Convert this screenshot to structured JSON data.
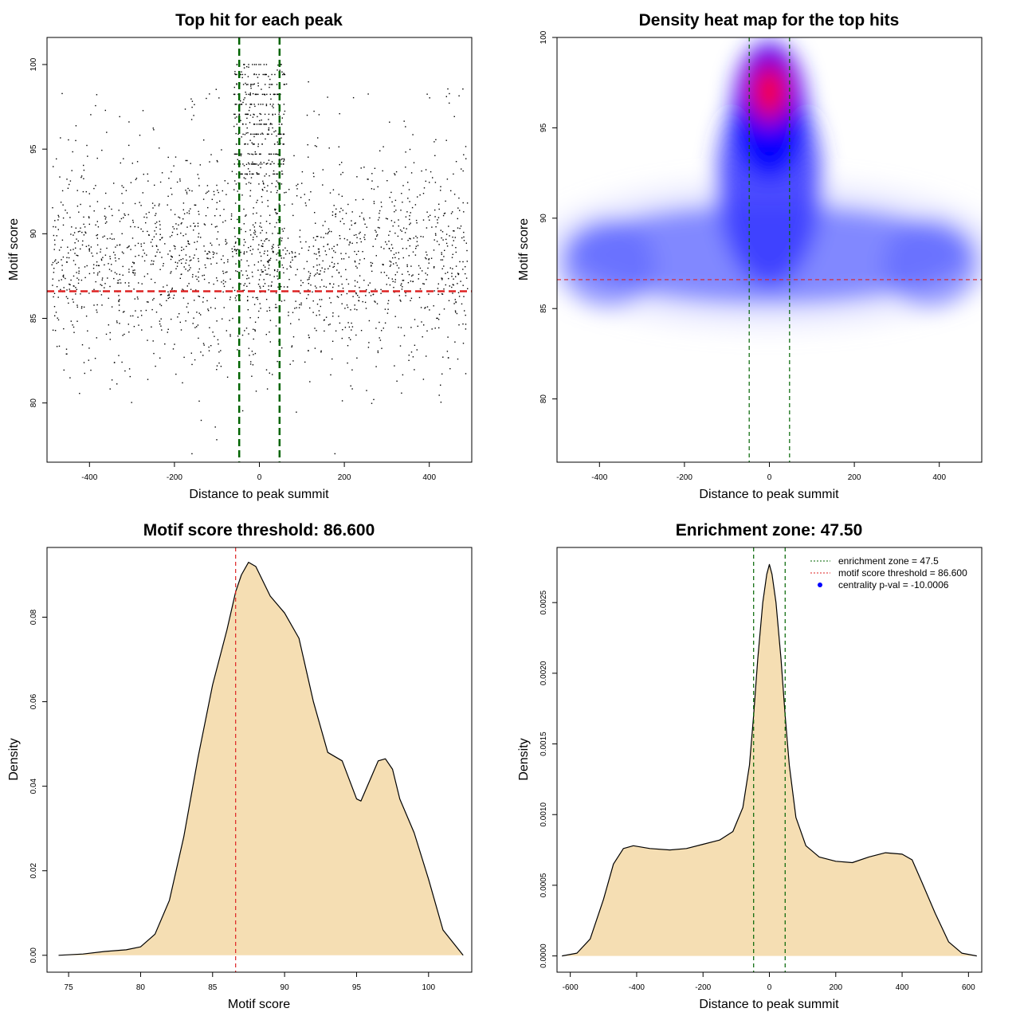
{
  "chart_data": [
    {
      "type": "scatter",
      "title": "Top hit for each peak",
      "xlabel": "Distance to peak summit",
      "ylabel": "Motif score",
      "xlim": [
        -500,
        500
      ],
      "ylim": [
        76.5,
        101.6
      ],
      "xticks": [
        "-400",
        "-200",
        "0",
        "200",
        "400"
      ],
      "yticks": [
        "80",
        "85",
        "90",
        "95",
        "100"
      ],
      "point_count_estimate": 2300,
      "point_distribution": {
        "background": {
          "x_range": [
            -490,
            490
          ],
          "y_mean": 88,
          "y_sd": 3
        },
        "central_cluster": {
          "x_range": [
            -60,
            60
          ],
          "y_range": [
            86,
            100
          ],
          "note": "dense vertical cluster near 0 with banded scores near 94-100"
        }
      },
      "vlines": [
        {
          "x": -47.5,
          "color": "#006400",
          "style": "dashed"
        },
        {
          "x": 47.5,
          "color": "#006400",
          "style": "dashed"
        }
      ],
      "hlines": [
        {
          "y": 86.6,
          "color": "#dd2222",
          "style": "dashed"
        }
      ],
      "grid": false
    },
    {
      "type": "heatmap",
      "title": "Density heat map for the top hits",
      "xlabel": "Distance to peak summit",
      "ylabel": "Motif score",
      "xlim": [
        -500,
        500
      ],
      "ylim": [
        76.5,
        100
      ],
      "xticks": [
        "-400",
        "-200",
        "0",
        "200",
        "400"
      ],
      "yticks": [
        "80",
        "85",
        "90",
        "95",
        "100"
      ],
      "colors": [
        "#ffffff",
        "#0000ff",
        "#ff0000"
      ],
      "hotspot": {
        "x": 0,
        "y": 97
      },
      "vlines": [
        {
          "x": -47.5,
          "color": "#006400",
          "style": "dashed"
        },
        {
          "x": 47.5,
          "color": "#006400",
          "style": "dashed"
        }
      ],
      "hlines": [
        {
          "y": 86.6,
          "color": "#dd2222",
          "style": "dashed"
        }
      ],
      "grid": false
    },
    {
      "type": "area",
      "title": "Motif score threshold: 86.600",
      "xlabel": "Motif score",
      "ylabel": "Density",
      "xlim": [
        73.5,
        103
      ],
      "ylim": [
        -0.004,
        0.0965
      ],
      "xticks": [
        "75",
        "80",
        "85",
        "90",
        "95",
        "100"
      ],
      "yticks": [
        "0.00",
        "0.02",
        "0.04",
        "0.06",
        "0.08"
      ],
      "fill_color": "#f5deb3",
      "x": [
        74.3,
        76,
        77.5,
        79,
        80,
        81,
        82,
        83,
        84,
        85,
        86,
        86.6,
        87,
        87.5,
        88,
        89,
        90,
        91,
        92,
        93,
        94,
        95,
        95.3,
        96,
        96.5,
        97,
        97.5,
        98,
        99,
        100,
        101,
        102.4
      ],
      "values": [
        0.0,
        0.0003,
        0.0009,
        0.0013,
        0.002,
        0.005,
        0.013,
        0.028,
        0.047,
        0.064,
        0.077,
        0.086,
        0.09,
        0.093,
        0.092,
        0.085,
        0.081,
        0.075,
        0.06,
        0.048,
        0.046,
        0.037,
        0.0365,
        0.042,
        0.046,
        0.0465,
        0.044,
        0.037,
        0.029,
        0.018,
        0.006,
        0.0
      ],
      "vlines": [
        {
          "x": 86.6,
          "color": "#dd2222",
          "style": "dashed"
        }
      ],
      "grid": false
    },
    {
      "type": "area",
      "title": "Enrichment zone: 47.50",
      "xlabel": "Distance to peak summit",
      "ylabel": "Density",
      "xlim": [
        -640,
        640
      ],
      "ylim": [
        -0.000115,
        0.00289
      ],
      "xticks": [
        "-600",
        "-400",
        "-200",
        "0",
        "200",
        "400",
        "600"
      ],
      "yticks": [
        "0.0000",
        "0.0005",
        "0.0010",
        "0.0015",
        "0.0020",
        "0.0025"
      ],
      "fill_color": "#f5deb3",
      "x": [
        -625,
        -580,
        -540,
        -500,
        -470,
        -440,
        -410,
        -360,
        -300,
        -250,
        -200,
        -150,
        -110,
        -80,
        -60,
        -47.5,
        -35,
        -20,
        -8,
        0,
        8,
        20,
        35,
        47.5,
        60,
        80,
        110,
        150,
        200,
        250,
        300,
        350,
        400,
        430,
        460,
        500,
        540,
        580,
        625
      ],
      "values": [
        0.0,
        2e-05,
        0.00012,
        0.0004,
        0.00065,
        0.00076,
        0.00078,
        0.00076,
        0.00075,
        0.00076,
        0.00079,
        0.00082,
        0.00088,
        0.00105,
        0.00135,
        0.0017,
        0.0021,
        0.0025,
        0.0027,
        0.00277,
        0.0027,
        0.0025,
        0.0021,
        0.0017,
        0.00135,
        0.00098,
        0.00078,
        0.0007,
        0.00067,
        0.00066,
        0.0007,
        0.00073,
        0.00072,
        0.00068,
        0.00052,
        0.0003,
        0.0001,
        2e-05,
        0.0
      ],
      "vlines": [
        {
          "x": -47.5,
          "color": "#006400",
          "style": "dashed"
        },
        {
          "x": 47.5,
          "color": "#006400",
          "style": "dashed"
        }
      ],
      "legend": {
        "placement": "top-right",
        "entries": [
          {
            "label": "enrichment zone = 47.5",
            "color": "#006400",
            "marker": "dotted-line"
          },
          {
            "label": "motif score threshold = 86.600",
            "color": "#dd2222",
            "marker": "dotted-line"
          },
          {
            "label": "centrality p-val = -10.0006",
            "color": "#0000ff",
            "marker": "dot"
          }
        ]
      },
      "grid": false
    }
  ]
}
